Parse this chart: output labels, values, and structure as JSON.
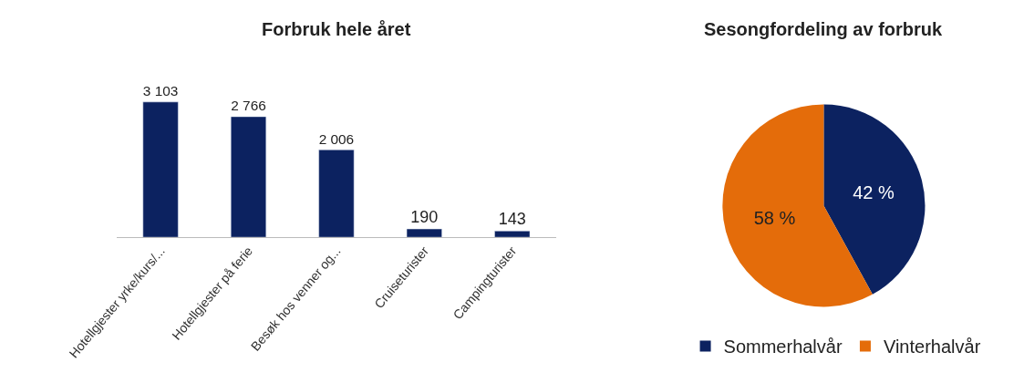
{
  "chart_data": [
    {
      "type": "bar",
      "title": "Forbruk hele året",
      "categories": [
        "Hotellgjester yrke/kurs/...",
        "Hotellgjester på ferie",
        "Besøk hos venner og...",
        "Cruiseturister",
        "Campingturister"
      ],
      "values": [
        3103,
        2766,
        2006,
        190,
        143
      ],
      "color": "#0c2260",
      "value_labels": [
        "3 103",
        "2 766",
        "2 006",
        "190",
        "143"
      ]
    },
    {
      "type": "pie",
      "title": "Sesongfordeling av forbruk",
      "categories": [
        "Sommerhalvår",
        "Vinterhalvår"
      ],
      "values": [
        42,
        58
      ],
      "colors": [
        "#0c2260",
        "#e46c0a"
      ],
      "value_labels": [
        "42 %",
        "58 %"
      ],
      "legend": "bottom"
    }
  ]
}
